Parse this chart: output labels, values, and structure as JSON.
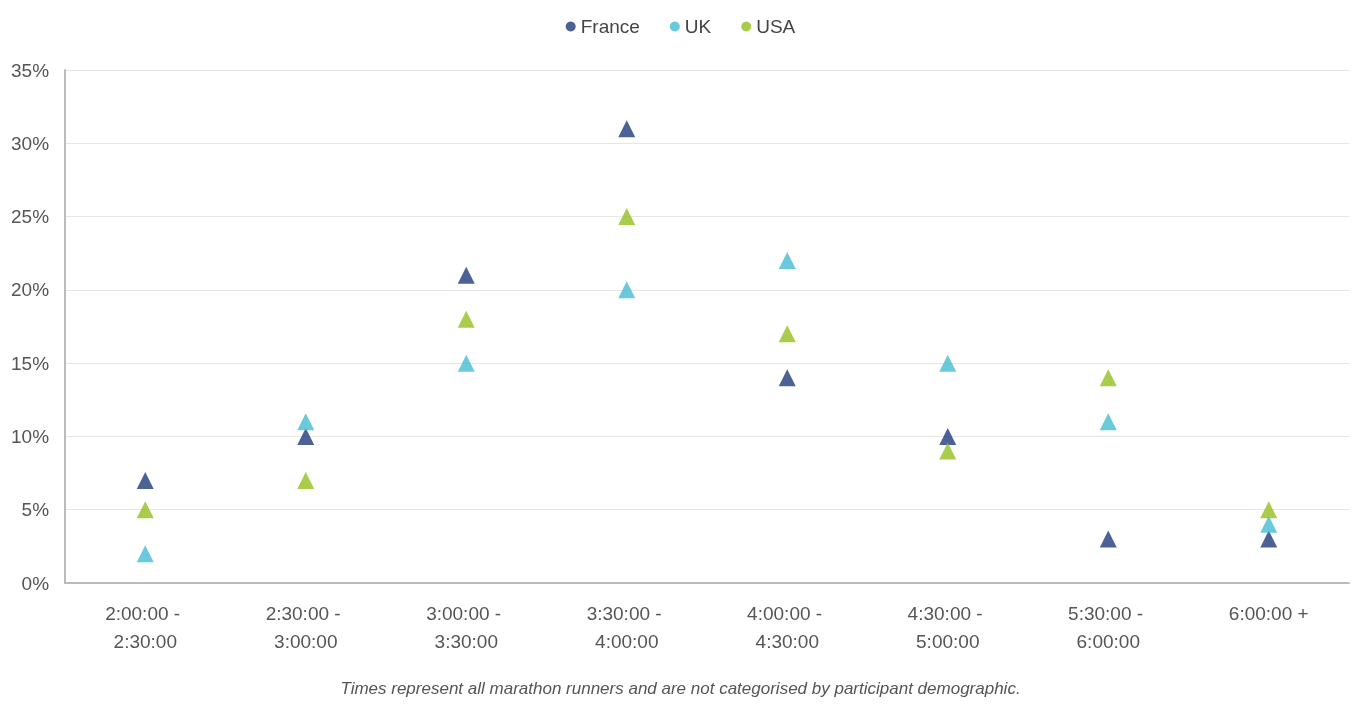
{
  "chart_data": {
    "type": "scatter",
    "marker": "triangle",
    "legend": "top",
    "grid": "y",
    "categories": [
      "2:00:00 - 2:30:00",
      "2:30:00 - 3:00:00",
      "3:00:00 - 3:30:00",
      "3:30:00 - 4:00:00",
      "4:00:00 - 4:30:00",
      "4:30:00 - 5:00:00",
      "5:30:00 - 6:00:00",
      "6:00:00 +"
    ],
    "series": [
      {
        "name": "France",
        "color": "#1f3a7a",
        "values": [
          7,
          10,
          21,
          31,
          14,
          10,
          3,
          3
        ]
      },
      {
        "name": "UK",
        "color": "#45bcd2",
        "values": [
          2,
          11,
          15,
          20,
          22,
          15,
          11,
          4
        ]
      },
      {
        "name": "USA",
        "color": "#93bf1f",
        "values": [
          5,
          7,
          18,
          25,
          17,
          9,
          14,
          5
        ]
      }
    ],
    "ylim": [
      0,
      35
    ],
    "yticks": [
      {
        "value": 0,
        "label": "0%"
      },
      {
        "value": 5,
        "label": "5%"
      },
      {
        "value": 10,
        "label": "10%"
      },
      {
        "value": 15,
        "label": "15%"
      },
      {
        "value": 20,
        "label": "20%"
      },
      {
        "value": 25,
        "label": "25%"
      },
      {
        "value": 30,
        "label": "30%"
      },
      {
        "value": 35,
        "label": "35%"
      }
    ],
    "annotations": [
      "Times represent all marathon runners and are not categorised by participant demographic."
    ]
  }
}
